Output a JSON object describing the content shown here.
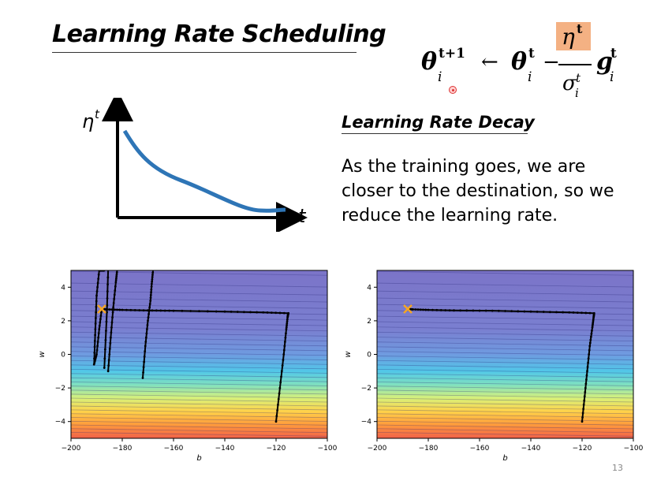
{
  "slide": {
    "title": "Learning Rate Scheduling",
    "subtitle": "Learning Rate Decay",
    "body_text": "As the training goes, we are closer to the destination, so we reduce the learning rate.",
    "page_number": "13",
    "highlight_color": "#f4b183"
  },
  "formula": {
    "lhs_base": "θ",
    "lhs_sub": "i",
    "lhs_sup": "t+1",
    "arrow": "←",
    "rhs_base": "θ",
    "rhs_sub": "i",
    "rhs_sup": "t",
    "minus": "−",
    "num_base": "η",
    "num_sup": "t",
    "den_base": "σ",
    "den_sub": "i",
    "den_sup": "t",
    "grad_base": "g",
    "grad_sub": "i",
    "grad_sup": "t"
  },
  "lr_plot": {
    "y_label": "η",
    "y_label_sup": "t",
    "x_label": "t",
    "curve_color": "#2e75b6"
  },
  "chart_data": [
    {
      "type": "line",
      "panel": "left",
      "xlabel": "b",
      "ylabel": "w",
      "xlim": [
        -200,
        -100
      ],
      "ylim": [
        -5,
        5
      ],
      "xticks": [
        "−200",
        "−180",
        "−160",
        "−140",
        "−120",
        "−100"
      ],
      "yticks": [
        "4",
        "2",
        "0",
        "−2",
        "−4"
      ],
      "start": {
        "b": -120,
        "w": -4
      },
      "target": {
        "b": -188,
        "w": 2.7
      },
      "series": [
        {
          "x": [
            -120,
            -118.5,
            -117,
            -116,
            -115.5,
            -115.3,
            -115.2,
            -125,
            -140,
            -160,
            -170,
            -180,
            -186,
            -188,
            -189,
            -190,
            -191,
            -190.5,
            -190,
            -189,
            -188.3,
            -187.5,
            -187
          ],
          "y": [
            -4,
            -2,
            0,
            1.5,
            2.2,
            2.4,
            2.45,
            2.5,
            2.55,
            2.6,
            2.62,
            2.65,
            2.68,
            2.7,
            1.5,
            0,
            -0.6,
            1.5,
            3.5,
            5,
            5,
            5,
            5
          ]
        },
        {
          "x": [
            -172,
            -171,
            -170,
            -169,
            -168.5,
            -168
          ],
          "y": [
            -1.4,
            0.5,
            2.0,
            3.2,
            4.2,
            5
          ]
        },
        {
          "x": [
            -185.5,
            -184.5,
            -183.5,
            -182.5,
            -182
          ],
          "y": [
            -1.0,
            1.0,
            2.8,
            4.3,
            5
          ]
        },
        {
          "x": [
            -187,
            -186,
            -185.5
          ],
          "y": [
            -0.8,
            2.5,
            5
          ]
        }
      ]
    },
    {
      "type": "line",
      "panel": "right",
      "xlabel": "b",
      "ylabel": "w",
      "xlim": [
        -200,
        -100
      ],
      "ylim": [
        -5,
        5
      ],
      "xticks": [
        "−200",
        "−180",
        "−160",
        "−140",
        "−120",
        "−100"
      ],
      "yticks": [
        "4",
        "2",
        "0",
        "−2",
        "−4"
      ],
      "start": {
        "b": -120,
        "w": -4
      },
      "target": {
        "b": -188,
        "w": 2.7
      },
      "series": [
        {
          "x": [
            -120,
            -119,
            -118,
            -117,
            -116,
            -115.5,
            -115.3,
            -125,
            -140,
            -155,
            -170,
            -180,
            -186,
            -188
          ],
          "y": [
            -4,
            -2.5,
            -1,
            0.5,
            1.6,
            2.2,
            2.45,
            2.5,
            2.55,
            2.6,
            2.62,
            2.65,
            2.68,
            2.7
          ]
        }
      ]
    }
  ]
}
